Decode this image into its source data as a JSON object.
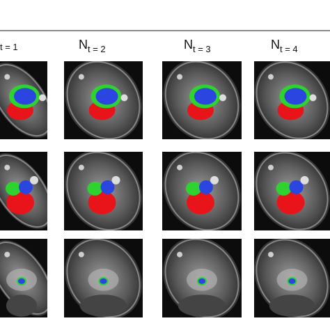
{
  "headers": [
    {
      "sub": "t = 1"
    },
    {
      "main": "N",
      "sub": "t = 2"
    },
    {
      "main": "N",
      "sub": "t = 3"
    },
    {
      "main": "N",
      "sub": "t = 4"
    }
  ]
}
